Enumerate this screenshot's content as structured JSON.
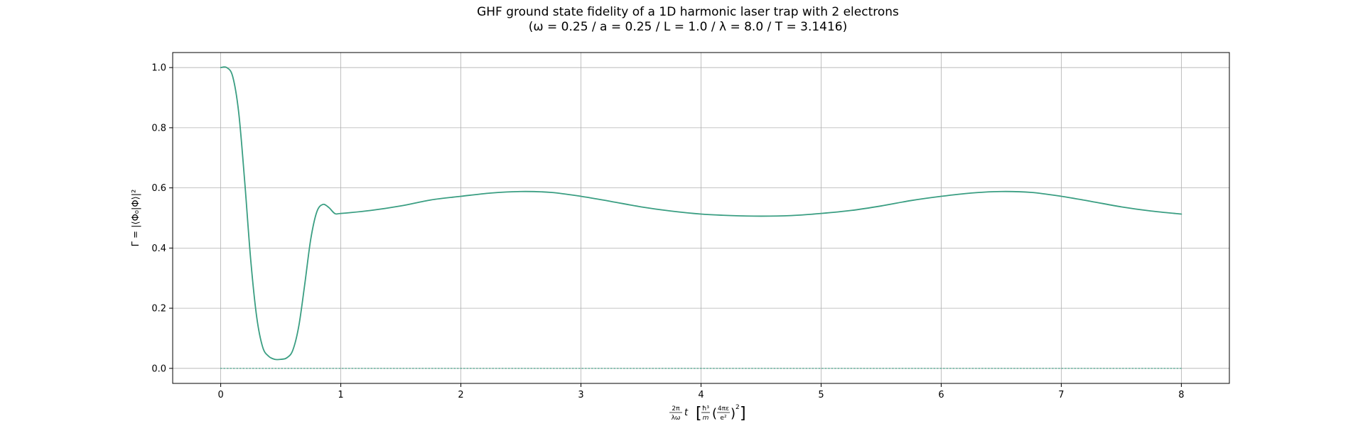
{
  "chart_data": {
    "type": "line",
    "title": "GHF ground state fidelity of a 1D harmonic laser trap with 2 electrons",
    "subtitle": "(ω = 0.25 / a = 0.25 / L = 1.0 / λ = 8.0 / T = 3.1416)",
    "xlabel": {
      "prefix_num": "2π",
      "prefix_den": "λω",
      "var": "t",
      "hbar3": "ħ³",
      "m": "m",
      "frac_num": "4πε",
      "frac_den": "e²",
      "exponent": "2"
    },
    "ylabel": "Γ = |⟨Φ₀|Φ⟩|²",
    "xlim": [
      -0.4,
      8.4
    ],
    "ylim": [
      -0.05,
      1.05
    ],
    "xticks": [
      0,
      1,
      2,
      3,
      4,
      5,
      6,
      7,
      8
    ],
    "xtick_labels": [
      "0",
      "1",
      "2",
      "3",
      "4",
      "5",
      "6",
      "7",
      "8"
    ],
    "yticks": [
      0.0,
      0.2,
      0.4,
      0.6,
      0.8,
      1.0
    ],
    "ytick_labels": [
      "0.0",
      "0.2",
      "0.4",
      "0.6",
      "0.8",
      "1.0"
    ],
    "grid": true,
    "series": [
      {
        "style": "solid",
        "color": "#3a9e82",
        "x": [
          0,
          0.05,
          0.1,
          0.15,
          0.2,
          0.25,
          0.3,
          0.35,
          0.4,
          0.45,
          0.5,
          0.55,
          0.6,
          0.65,
          0.7,
          0.75,
          0.8,
          0.85,
          0.9,
          0.95,
          1.0,
          1.25,
          1.5,
          1.75,
          2.0,
          2.25,
          2.5,
          2.75,
          3.0,
          3.25,
          3.5,
          3.75,
          4.0,
          4.25,
          4.5,
          4.75,
          5.0,
          5.25,
          5.5,
          5.75,
          6.0,
          6.25,
          6.5,
          6.75,
          7.0,
          7.25,
          7.5,
          7.75,
          8.0
        ],
        "y": [
          1.0,
          1.0,
          0.97,
          0.85,
          0.62,
          0.36,
          0.17,
          0.07,
          0.04,
          0.03,
          0.03,
          0.035,
          0.06,
          0.14,
          0.28,
          0.43,
          0.52,
          0.545,
          0.535,
          0.515,
          0.515,
          0.525,
          0.54,
          0.56,
          0.572,
          0.583,
          0.588,
          0.585,
          0.572,
          0.555,
          0.537,
          0.523,
          0.513,
          0.508,
          0.506,
          0.508,
          0.515,
          0.525,
          0.54,
          0.558,
          0.572,
          0.583,
          0.588,
          0.585,
          0.572,
          0.555,
          0.537,
          0.523,
          0.513
        ]
      },
      {
        "style": "dotted",
        "color": "#3a9e82",
        "x": [
          0,
          8
        ],
        "y": [
          0,
          0
        ]
      }
    ]
  }
}
